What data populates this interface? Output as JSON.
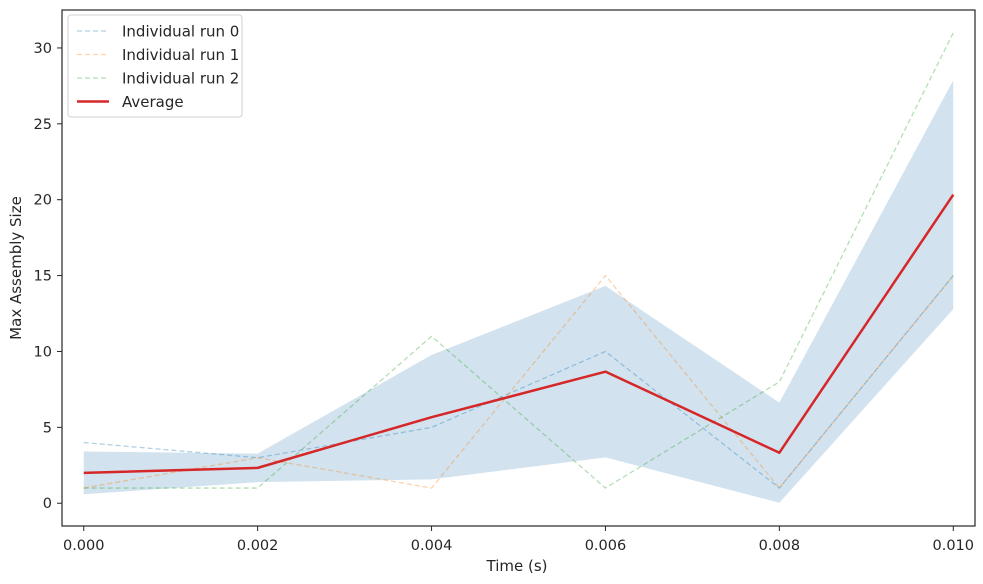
{
  "chart_data": {
    "type": "line",
    "xlabel": "Time (s)",
    "ylabel": "Max Assembly Size",
    "x": [
      0.0,
      0.002,
      0.004,
      0.006,
      0.008,
      0.01
    ],
    "x_tick_labels": [
      "0.000",
      "0.002",
      "0.004",
      "0.006",
      "0.008",
      "0.010"
    ],
    "y_ticks": [
      0,
      5,
      10,
      15,
      20,
      25,
      30
    ],
    "xlim": [
      -0.00025,
      0.01025
    ],
    "ylim": [
      -1.5,
      32.5
    ],
    "grid": false,
    "legend_position": "top-left",
    "series": [
      {
        "name": "Individual run 0",
        "values": [
          4,
          3,
          5,
          10,
          1,
          15
        ],
        "color": "#1f77b4",
        "style": "dashed"
      },
      {
        "name": "Individual run 1",
        "values": [
          1,
          3,
          1,
          15,
          1,
          15
        ],
        "color": "#ff7f0e",
        "style": "dashed"
      },
      {
        "name": "Individual run 2",
        "values": [
          1,
          1,
          11,
          1,
          8,
          31
        ],
        "color": "#2ca02c",
        "style": "dashed"
      },
      {
        "name": "Average",
        "values": [
          2.0,
          2.33,
          5.67,
          8.67,
          3.33,
          20.33
        ],
        "color": "#d62728",
        "style": "solid"
      }
    ],
    "band": {
      "upper": [
        3.41,
        3.27,
        9.77,
        14.32,
        6.63,
        27.87
      ],
      "lower": [
        0.59,
        1.39,
        1.57,
        3.02,
        0.03,
        12.79
      ],
      "color": "#a6c8e0"
    }
  }
}
